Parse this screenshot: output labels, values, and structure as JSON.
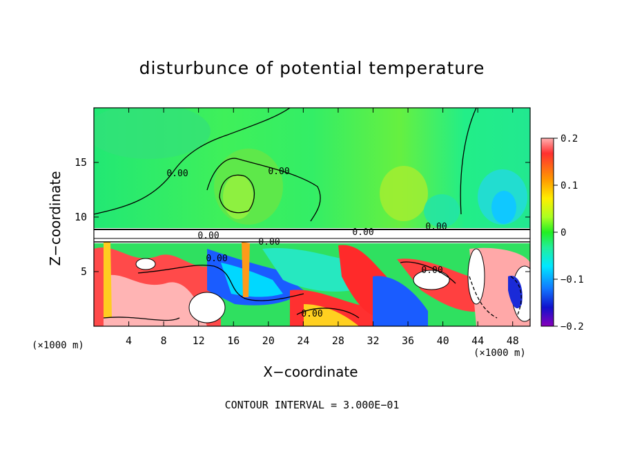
{
  "chart_data": {
    "type": "heatmap",
    "title": "disturbunce of potential temperature",
    "xlabel": "X−coordinate",
    "ylabel": "Z−coordinate",
    "x_unit": "(×1000 m)",
    "y_unit": "(×1000 m)",
    "xlim": [
      0,
      50
    ],
    "ylim": [
      0,
      20
    ],
    "x_ticks": [
      4,
      8,
      12,
      16,
      20,
      24,
      28,
      32,
      36,
      40,
      44,
      48
    ],
    "y_ticks": [
      5,
      10,
      15
    ],
    "colorbar": {
      "range": [
        -0.2,
        0.2
      ],
      "tick_labels": [
        "0.2",
        "0.1",
        "0",
        "−0.1",
        "−0.2"
      ],
      "tick_values": [
        0.2,
        0.1,
        0,
        -0.1,
        -0.2
      ]
    },
    "contour_labels": [
      "0.00",
      "0.00",
      "0.00",
      "0.00",
      "0.00",
      "0.00",
      "0.00",
      "0.00",
      "0.00"
    ],
    "contour_interval": "CONTOUR INTERVAL = 3.000E−01",
    "grid": false
  }
}
